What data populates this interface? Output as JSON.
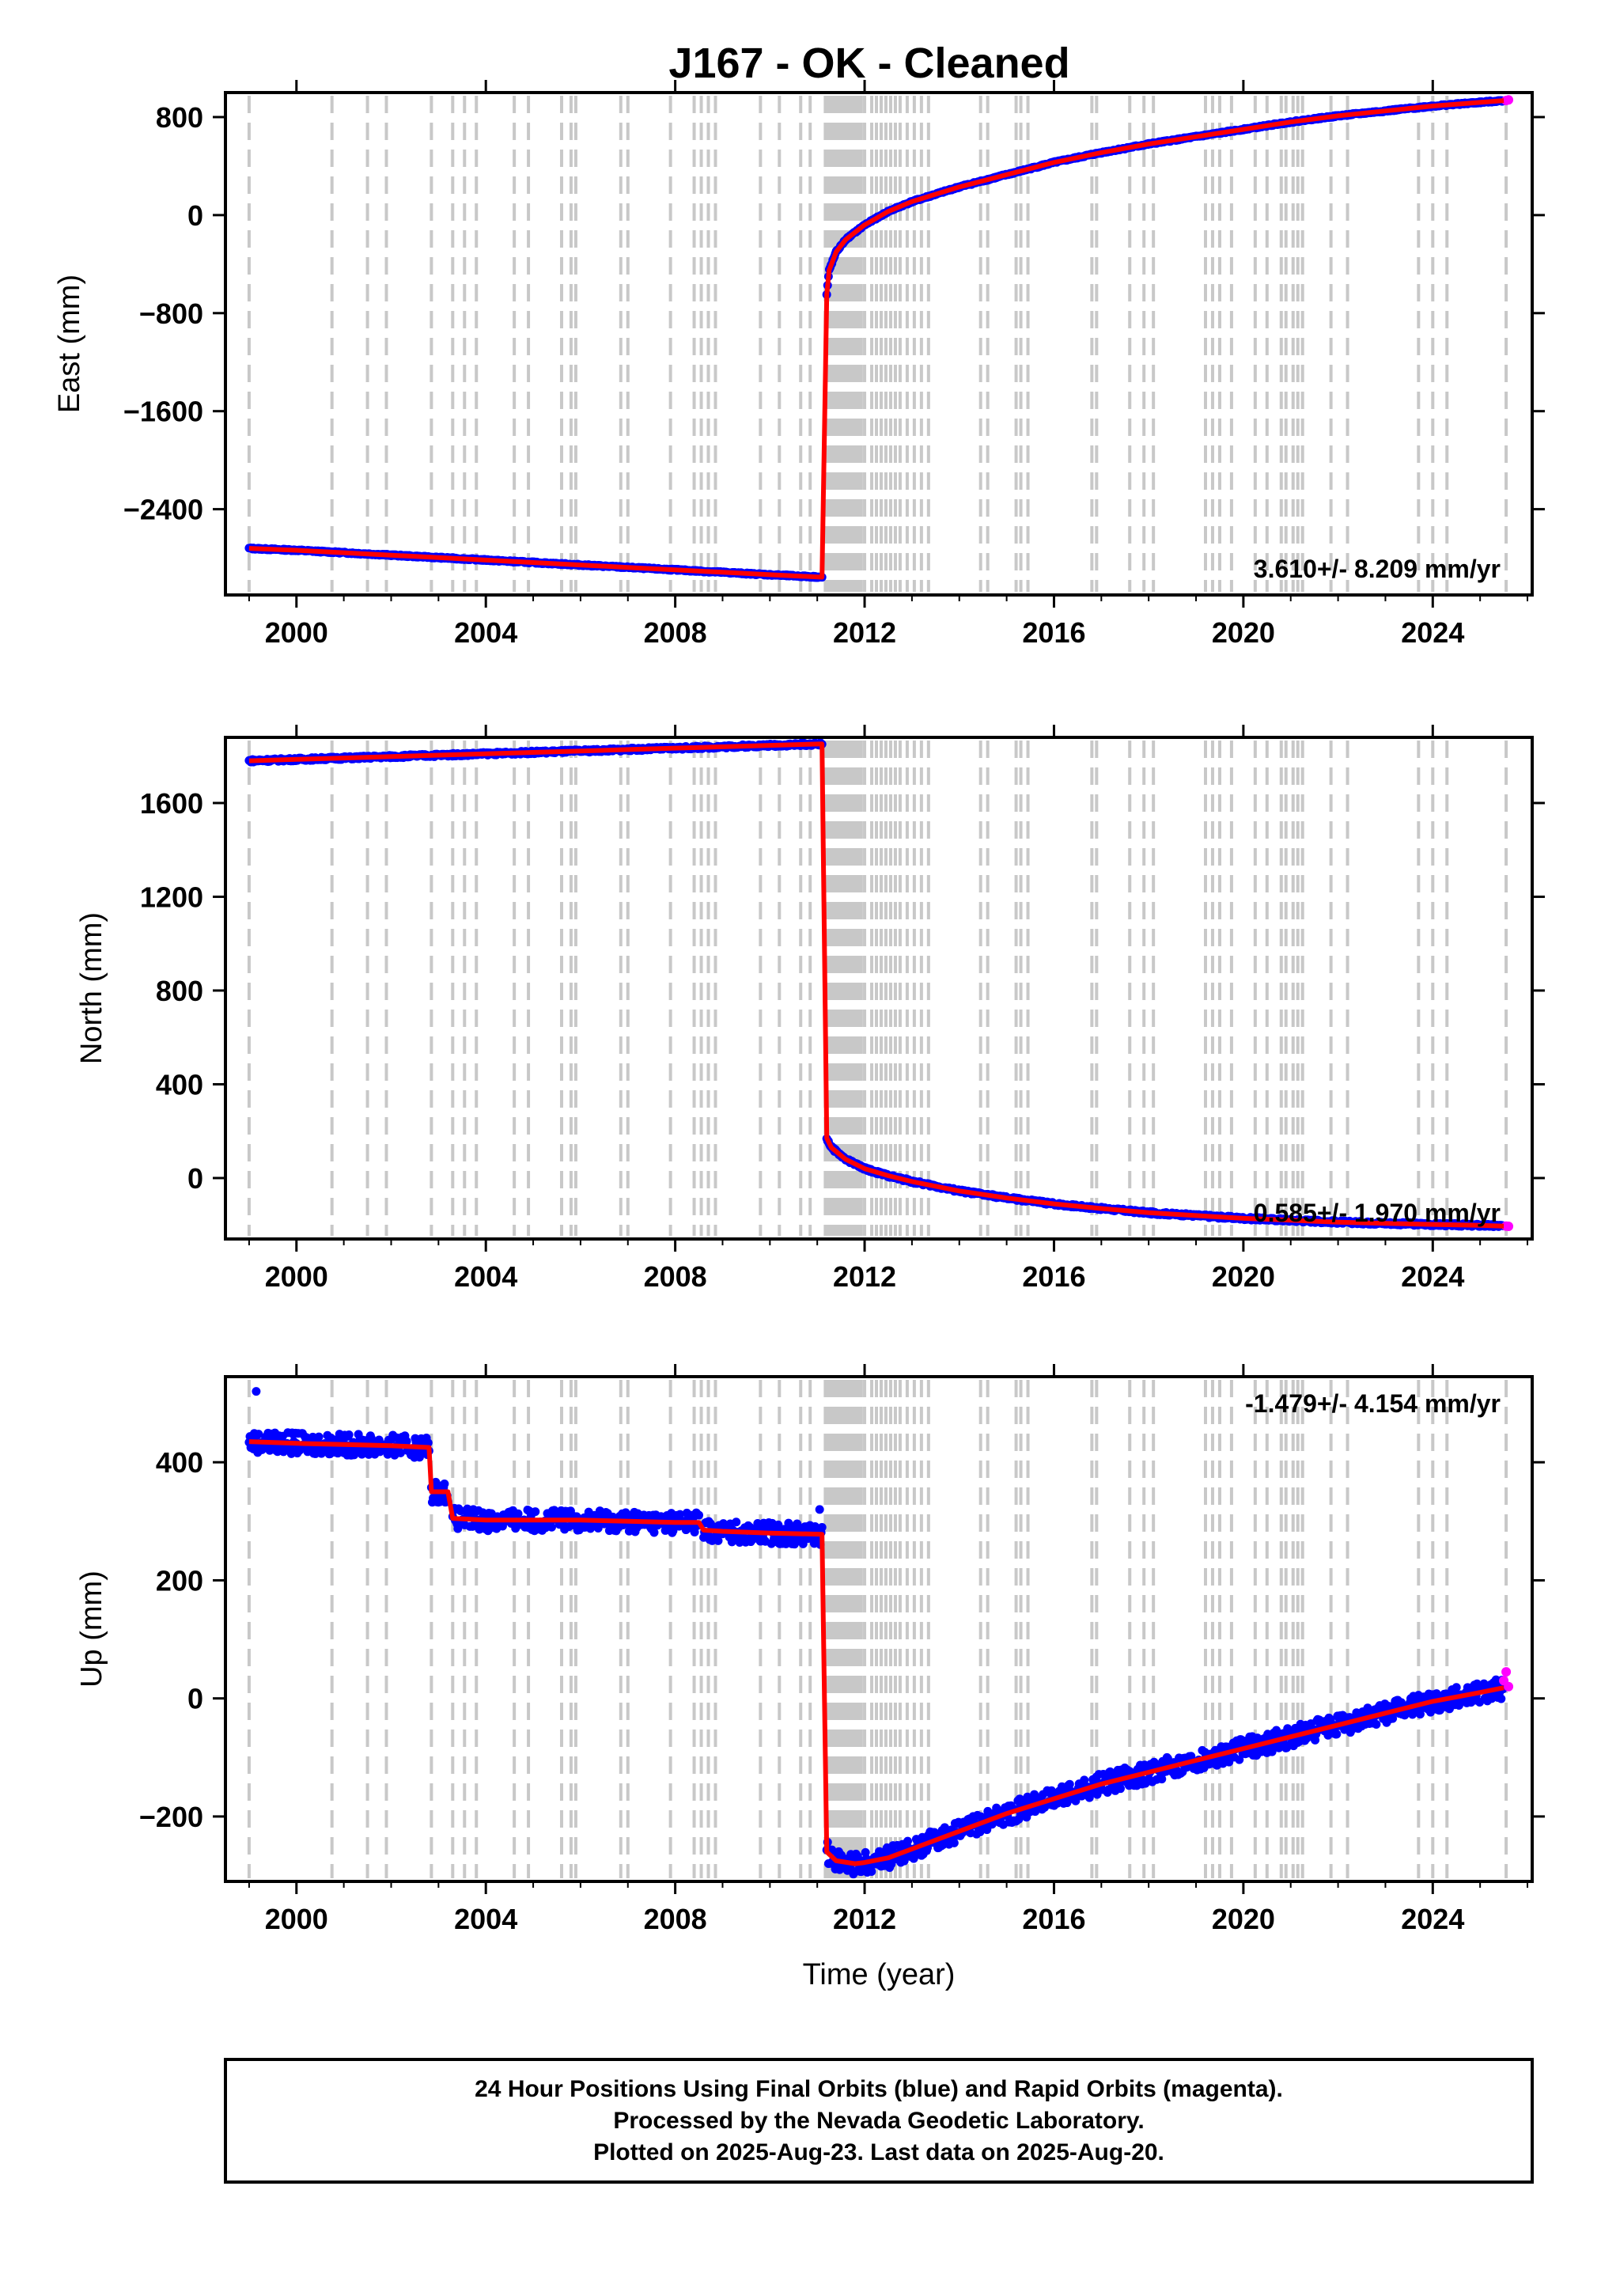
{
  "title": "J167  - OK - Cleaned",
  "chart_data": [
    {
      "type": "scatter",
      "component": "East",
      "ylabel": "East (mm)",
      "xlabel": "",
      "xlim": [
        1998.5,
        2026.1
      ],
      "ylim": [
        -3100,
        1000
      ],
      "yticks": [
        800,
        0,
        -800,
        -1600,
        -2400
      ],
      "xticks": [
        2000,
        2004,
        2008,
        2012,
        2016,
        2020,
        2024
      ],
      "grid": false,
      "rate_text": "3.610+/- 8.209 mm/yr",
      "rate_position": "bottom-right",
      "series": [
        {
          "name": "Final Orbits",
          "color": "#0000ff",
          "segments": [
            {
              "x": [
                1999.0,
                2000.0,
                2001.0,
                2002.0,
                2003.0,
                2004.0,
                2005.0,
                2006.0,
                2007.0,
                2008.0,
                2009.0,
                2010.0,
                2011.1
              ],
              "y": [
                -2720,
                -2735,
                -2755,
                -2775,
                -2795,
                -2815,
                -2835,
                -2855,
                -2875,
                -2895,
                -2915,
                -2935,
                -2955
              ]
            },
            {
              "x": [
                2011.2,
                2011.25,
                2011.4,
                2011.6,
                2012.0,
                2012.5,
                2013.0,
                2014.0,
                2015.0,
                2016.0,
                2017.0,
                2018.0,
                2019.0,
                2020.0,
                2021.0,
                2022.0,
                2023.0,
                2024.0,
                2025.0,
                2025.5
              ],
              "y": [
                -650,
                -450,
                -300,
                -200,
                -80,
                30,
                110,
                230,
                330,
                430,
                510,
                580,
                640,
                700,
                760,
                810,
                850,
                890,
                920,
                935
              ]
            }
          ]
        },
        {
          "name": "Rapid Orbits",
          "color": "#ff00ff",
          "x": [
            2025.55,
            2025.6
          ],
          "y": [
            935,
            940
          ]
        },
        {
          "name": "Model",
          "color": "#ff0000"
        }
      ]
    },
    {
      "type": "scatter",
      "component": "North",
      "ylabel": "North (mm)",
      "xlabel": "",
      "xlim": [
        1998.5,
        2026.1
      ],
      "ylim": [
        -260,
        1880
      ],
      "yticks": [
        1600,
        1200,
        800,
        400,
        0
      ],
      "xticks": [
        2000,
        2004,
        2008,
        2012,
        2016,
        2020,
        2024
      ],
      "grid": false,
      "rate_text": "0.585+/- 1.970 mm/yr",
      "rate_position": "bottom-right",
      "series": [
        {
          "name": "Final Orbits",
          "color": "#0000ff",
          "segments": [
            {
              "x": [
                1999.0,
                2000.0,
                2001.0,
                2002.0,
                2003.0,
                2004.0,
                2005.0,
                2006.0,
                2007.0,
                2008.0,
                2009.0,
                2010.0,
                2011.1
              ],
              "y": [
                1780,
                1786,
                1792,
                1798,
                1804,
                1810,
                1816,
                1822,
                1828,
                1834,
                1840,
                1846,
                1852
              ]
            },
            {
              "x": [
                2011.2,
                2011.3,
                2011.6,
                2012.0,
                2012.5,
                2013.0,
                2014.0,
                2015.0,
                2016.0,
                2017.0,
                2018.0,
                2019.0,
                2020.0,
                2021.0,
                2022.0,
                2023.0,
                2024.0,
                2025.0,
                2025.5
              ],
              "y": [
                170,
                130,
                80,
                40,
                10,
                -15,
                -55,
                -85,
                -110,
                -130,
                -148,
                -160,
                -172,
                -180,
                -188,
                -193,
                -198,
                -202,
                -205
              ]
            }
          ]
        },
        {
          "name": "Rapid Orbits",
          "color": "#ff00ff",
          "x": [
            2025.55,
            2025.6
          ],
          "y": [
            -205,
            -206
          ]
        },
        {
          "name": "Model",
          "color": "#ff0000"
        }
      ]
    },
    {
      "type": "scatter",
      "component": "Up",
      "ylabel": "Up (mm)",
      "xlabel": "Time (year)",
      "xlim": [
        1998.5,
        2026.1
      ],
      "ylim": [
        -310,
        545
      ],
      "yticks": [
        400,
        200,
        0,
        -200
      ],
      "xticks": [
        2000,
        2004,
        2008,
        2012,
        2016,
        2020,
        2024
      ],
      "grid": false,
      "rate_text": "-1.479+/- 4.154 mm/yr",
      "rate_position": "top-right",
      "series": [
        {
          "name": "Final Orbits",
          "color": "#0000ff",
          "segments": [
            {
              "x": [
                1999.0,
                2000.0,
                2001.0,
                2002.0,
                2002.8
              ],
              "y": [
                435,
                432,
                430,
                428,
                425
              ]
            },
            {
              "x": [
                2002.85,
                2003.2
              ],
              "y": [
                350,
                350
              ]
            },
            {
              "x": [
                2003.3,
                2004.0,
                2005.0,
                2006.0,
                2007.0,
                2008.0,
                2008.5
              ],
              "y": [
                305,
                302,
                302,
                302,
                300,
                298,
                298
              ]
            },
            {
              "x": [
                2008.6,
                2009.0,
                2010.0,
                2011.1
              ],
              "y": [
                285,
                283,
                280,
                278
              ]
            },
            {
              "x": [
                2011.2,
                2011.4,
                2011.8,
                2012.0,
                2012.5,
                2013.0,
                2014.0,
                2015.0,
                2016.0,
                2017.0,
                2018.0,
                2019.0,
                2020.0,
                2021.0,
                2022.0,
                2023.0,
                2024.0,
                2025.0,
                2025.5
              ],
              "y": [
                -260,
                -275,
                -280,
                -278,
                -270,
                -255,
                -225,
                -195,
                -170,
                -145,
                -125,
                -105,
                -85,
                -65,
                -45,
                -25,
                -5,
                10,
                18
              ]
            }
          ]
        },
        {
          "name": "Rapid Orbits",
          "color": "#ff00ff",
          "x": [
            2025.5,
            2025.55,
            2025.6
          ],
          "y": [
            30,
            45,
            20
          ]
        },
        {
          "name": "Model",
          "color": "#ff0000"
        }
      ]
    }
  ],
  "steps": [
    1999.0,
    2000.75,
    2001.5,
    2001.9,
    2002.85,
    2003.3,
    2003.55,
    2003.8,
    2004.6,
    2004.9,
    2005.6,
    2005.8,
    2005.9,
    2006.85,
    2007.0,
    2007.9,
    2008.4,
    2008.55,
    2008.7,
    2008.85,
    2009.8,
    2010.2,
    2010.65,
    2010.85,
    2011.17,
    2011.22,
    2011.28,
    2011.32,
    2011.38,
    2011.43,
    2011.48,
    2011.52,
    2011.58,
    2011.63,
    2011.68,
    2011.72,
    2011.78,
    2011.83,
    2011.88,
    2011.93,
    2012.0,
    2012.15,
    2012.25,
    2012.35,
    2012.45,
    2012.55,
    2012.65,
    2012.75,
    2012.9,
    2013.05,
    2013.2,
    2013.35,
    2014.45,
    2014.6,
    2015.2,
    2015.3,
    2015.45,
    2016.8,
    2016.9,
    2017.6,
    2017.9,
    2018.1,
    2019.2,
    2019.35,
    2019.5,
    2019.75,
    2020.25,
    2020.5,
    2020.8,
    2020.9,
    2021.05,
    2021.15,
    2021.25,
    2021.85,
    2022.2,
    2023.7,
    2024.0,
    2024.3,
    2025.55
  ],
  "footer": {
    "line1": "24 Hour Positions Using Final Orbits (blue) and Rapid Orbits (magenta).",
    "line2": "Processed by the Nevada Geodetic Laboratory.",
    "line3": "Plotted on 2025-Aug-23. Last data on 2025-Aug-20."
  }
}
